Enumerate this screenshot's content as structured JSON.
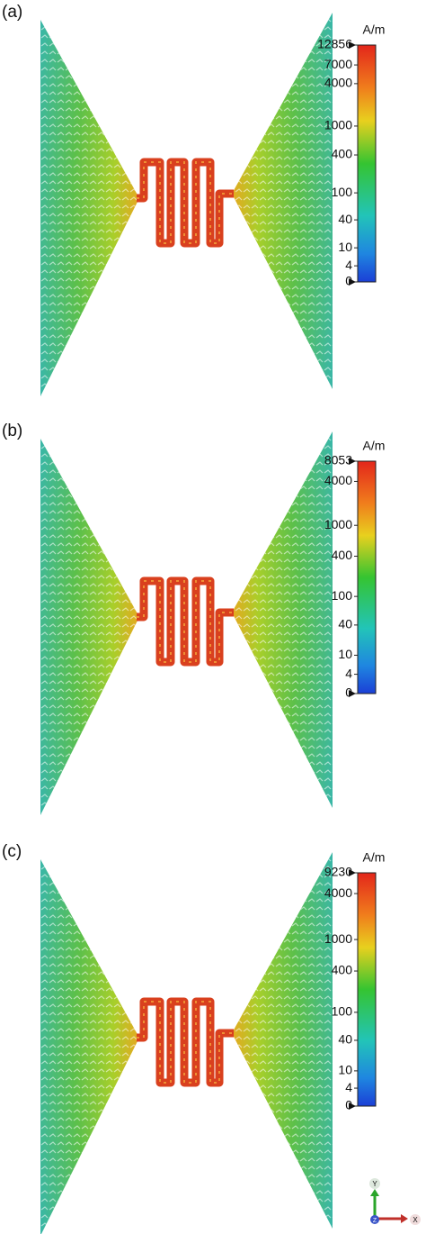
{
  "panels": [
    {
      "label": "(a)",
      "unit": "A/m",
      "ticks": [
        "12856",
        "7000",
        "4000",
        "1000",
        "400",
        "100",
        "40",
        "10",
        "4",
        "0"
      ]
    },
    {
      "label": "(b)",
      "unit": "A/m",
      "ticks": [
        "8053",
        "4000",
        "1000",
        "400",
        "100",
        "40",
        "10",
        "4",
        "0"
      ]
    },
    {
      "label": "(c)",
      "unit": "A/m",
      "ticks": [
        "9230",
        "4000",
        "1000",
        "400",
        "100",
        "40",
        "10",
        "4",
        "0"
      ]
    }
  ],
  "axes_triad": {
    "y": "Y",
    "x": "X",
    "z": "Z"
  }
}
